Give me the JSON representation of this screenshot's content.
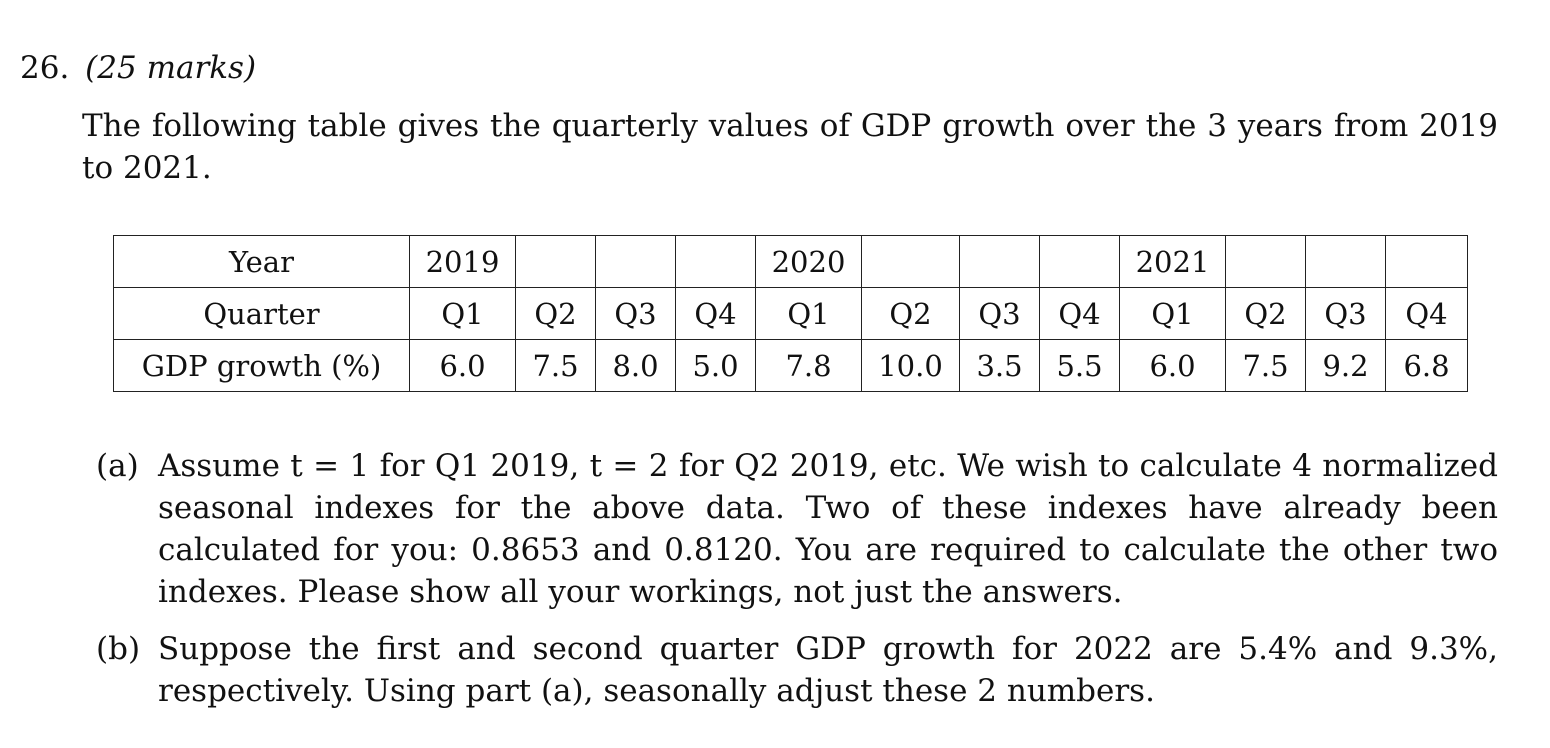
{
  "question": {
    "number": "26.",
    "marks": "(25 marks)"
  },
  "intro": "The following table gives the quarterly values of GDP growth over the 3 years from 2019 to 2021.",
  "table": {
    "row_labels": [
      "Year",
      "Quarter",
      "GDP growth (%)"
    ],
    "years": [
      "2019",
      "",
      "",
      "",
      "2020",
      "",
      "",
      "",
      "2021",
      "",
      "",
      ""
    ],
    "quarters": [
      "Q1",
      "Q2",
      "Q3",
      "Q4",
      "Q1",
      "Q2",
      "Q3",
      "Q4",
      "Q1",
      "Q2",
      "Q3",
      "Q4"
    ],
    "growth": [
      "6.0",
      "7.5",
      "8.0",
      "5.0",
      "7.8",
      "10.0",
      "3.5",
      "5.5",
      "6.0",
      "7.5",
      "9.2",
      "6.8"
    ]
  },
  "parts": [
    {
      "label": "(a)",
      "text": "Assume t = 1 for Q1 2019, t = 2 for Q2 2019, etc. We wish to calculate 4 normalized seasonal indexes for the above data. Two of these indexes have already been calculated for you: 0.8653 and 0.8120. You are required to calculate the other two indexes. Please show all your workings, not just the answers."
    },
    {
      "label": "(b)",
      "text": "Suppose the first and second quarter GDP growth for 2022 are 5.4% and 9.3%, respectively. Using part (a), seasonally adjust these 2 numbers."
    }
  ]
}
